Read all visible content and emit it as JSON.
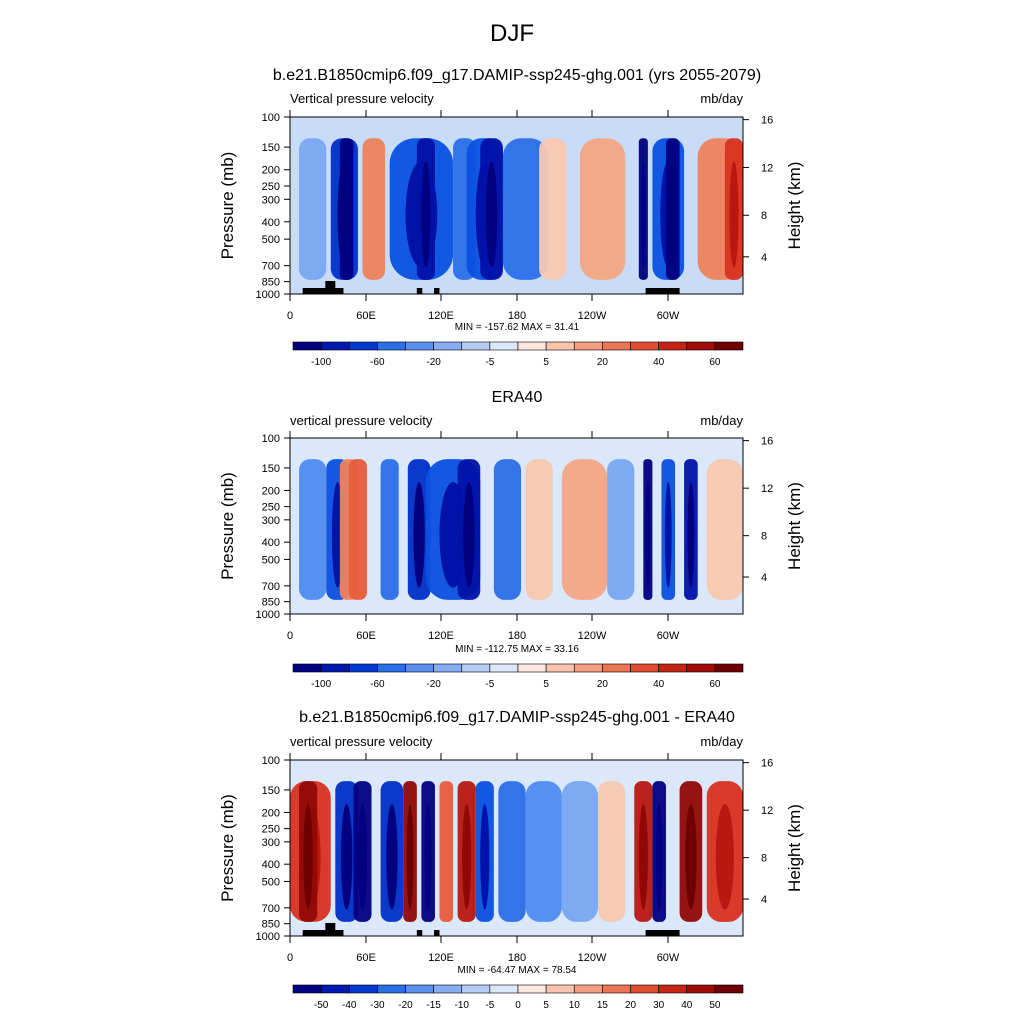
{
  "figure": {
    "title": "DJF"
  },
  "chart_data": [
    {
      "type": "heatmap",
      "title": "b.e21.B1850cmip6.f09_g17.DAMIP-ssp245-ghg.001 (yrs 2055-2079)",
      "left_label": "Vertical pressure velocity",
      "right_label": "mb/day",
      "xlabel": "",
      "ylabel": "Pressure (mb)",
      "ylabel_right": "Height (km)",
      "x_ticks": [
        "0",
        "60E",
        "120E",
        "180",
        "120W",
        "60W"
      ],
      "y_ticks": [
        "100",
        "150",
        "200",
        "250",
        "300",
        "400",
        "500",
        "700",
        "850",
        "1000"
      ],
      "y_right_ticks": [
        "16",
        "12",
        "8",
        "4"
      ],
      "stats": "MIN = -157.62  MAX =  31.41",
      "colorbar_labels": [
        "-100",
        "-60",
        "-20",
        "-5",
        "5",
        "20",
        "40",
        "60"
      ],
      "ylim": [
        1000,
        100
      ]
    },
    {
      "type": "heatmap",
      "title": "ERA40",
      "left_label": "vertical pressure velocity",
      "right_label": "mb/day",
      "xlabel": "",
      "ylabel": "Pressure (mb)",
      "ylabel_right": "Height (km)",
      "x_ticks": [
        "0",
        "60E",
        "120E",
        "180",
        "120W",
        "60W"
      ],
      "y_ticks": [
        "100",
        "150",
        "200",
        "250",
        "300",
        "400",
        "500",
        "700",
        "850",
        "1000"
      ],
      "y_right_ticks": [
        "16",
        "12",
        "8",
        "4"
      ],
      "stats": "MIN = -112.75  MAX =  33.16",
      "colorbar_labels": [
        "-100",
        "-60",
        "-20",
        "-5",
        "5",
        "20",
        "40",
        "60"
      ],
      "ylim": [
        1000,
        100
      ]
    },
    {
      "type": "heatmap",
      "title": "b.e21.B1850cmip6.f09_g17.DAMIP-ssp245-ghg.001 - ERA40",
      "left_label": "vertical pressure velocity",
      "right_label": "mb/day",
      "xlabel": "",
      "ylabel": "Pressure (mb)",
      "ylabel_right": "Height (km)",
      "x_ticks": [
        "0",
        "60E",
        "120E",
        "180",
        "120W",
        "60W"
      ],
      "y_ticks": [
        "100",
        "150",
        "200",
        "250",
        "300",
        "400",
        "500",
        "700",
        "850",
        "1000"
      ],
      "y_right_ticks": [
        "16",
        "12",
        "8",
        "4"
      ],
      "stats": "MIN = -64.47  MAX =  78.54",
      "colorbar_labels": [
        "-50",
        "-40",
        "-30",
        "-20",
        "-15",
        "-10",
        "-5",
        "0",
        "5",
        "10",
        "15",
        "20",
        "30",
        "40",
        "50"
      ],
      "ylim": [
        1000,
        100
      ]
    }
  ],
  "colors": {
    "blue_scale": [
      "#000080",
      "#0012a8",
      "#0030c8",
      "#0a50e0",
      "#2a6ee8",
      "#4f8cf0",
      "#78a8f2",
      "#a2c2f4",
      "#c8dcf8",
      "#e4eefa"
    ],
    "red_scale": [
      "#fde8dc",
      "#f9c8b0",
      "#f4a584",
      "#ee825e",
      "#e85c3c",
      "#d83220",
      "#b81810",
      "#900806",
      "#6e0000"
    ],
    "panel3_bar": [
      "#000080",
      "#0018b0",
      "#0038d0",
      "#2a6ee8",
      "#5a90f0",
      "#86acf2",
      "#b4ccf6",
      "#dbe8fa",
      "#fde6dc",
      "#f8c4ac",
      "#f29e80",
      "#eb7656",
      "#e04c30",
      "#c42414",
      "#a00c08",
      "#6e0000"
    ]
  }
}
